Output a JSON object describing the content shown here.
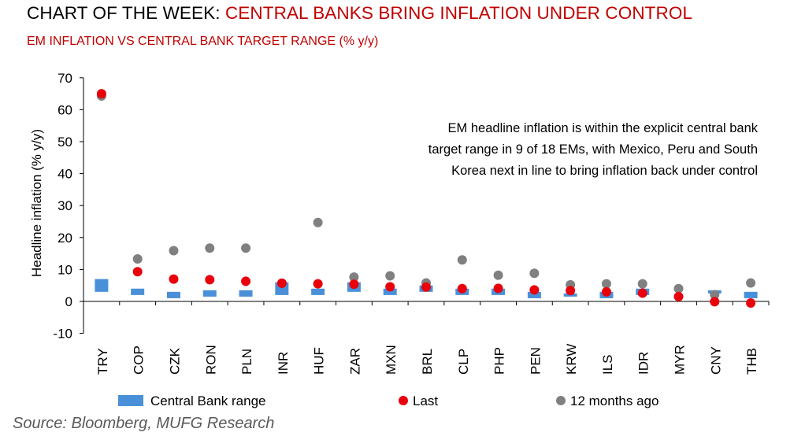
{
  "title": {
    "prefix": "CHART OF THE WEEK: ",
    "main": "CENTRAL BANKS BRING INFLATION UNDER CONTROL"
  },
  "subtitle": "EM INFLATION VS CENTRAL BANK TARGET RANGE (% y/y)",
  "source": "Source: Bloomberg, MUFG Research",
  "annotation_lines": [
    "EM headline inflation is within the explicit central bank",
    "target range in 9 of 18 EMs, with Mexico, Peru and South",
    "Korea next in line to bring inflation back under control"
  ],
  "colors": {
    "title_red": "#c00000",
    "range_bar": "#4a90d9",
    "last_dot": "#e8000b",
    "prior_dot": "#808080"
  },
  "chart_data": {
    "type": "scatter",
    "ylabel": "Headline inflation (% y/y)",
    "xlabel": "",
    "ylim": [
      -10,
      70
    ],
    "yticks": [
      -10,
      0,
      10,
      20,
      30,
      40,
      50,
      60,
      70
    ],
    "grid": false,
    "legend_position": "bottom",
    "categories": [
      "TRY",
      "COP",
      "CZK",
      "RON",
      "PLN",
      "INR",
      "HUF",
      "ZAR",
      "MXN",
      "BRL",
      "CLP",
      "PHP",
      "PEN",
      "KRW",
      "ILS",
      "IDR",
      "MYR",
      "CNY",
      "THB"
    ],
    "series": [
      {
        "name": "Central Bank range",
        "kind": "range",
        "lower": [
          3,
          2,
          1,
          1.5,
          1.5,
          2,
          2,
          3,
          2,
          3,
          2,
          2,
          1,
          2,
          1,
          2,
          null,
          2.5,
          1
        ],
        "upper": [
          7,
          4,
          3,
          3.5,
          3.5,
          6,
          4,
          6,
          4,
          5,
          4,
          4,
          3,
          2,
          3,
          4,
          null,
          3.5,
          3
        ]
      },
      {
        "name": "Last",
        "kind": "point",
        "values": [
          65,
          9.3,
          7,
          6.8,
          6.3,
          5.7,
          5.5,
          5.4,
          4.6,
          4.5,
          4,
          4.1,
          3.6,
          3.4,
          3,
          2.6,
          1.5,
          -0.1,
          -0.5
        ]
      },
      {
        "name": "12 months ago",
        "kind": "point",
        "values": [
          64.3,
          13.3,
          15.9,
          16.7,
          16.7,
          5.7,
          24.7,
          7.6,
          8,
          5.8,
          13,
          8.2,
          8.8,
          5.2,
          5.5,
          5.5,
          4,
          2.1,
          5.8
        ]
      }
    ]
  }
}
